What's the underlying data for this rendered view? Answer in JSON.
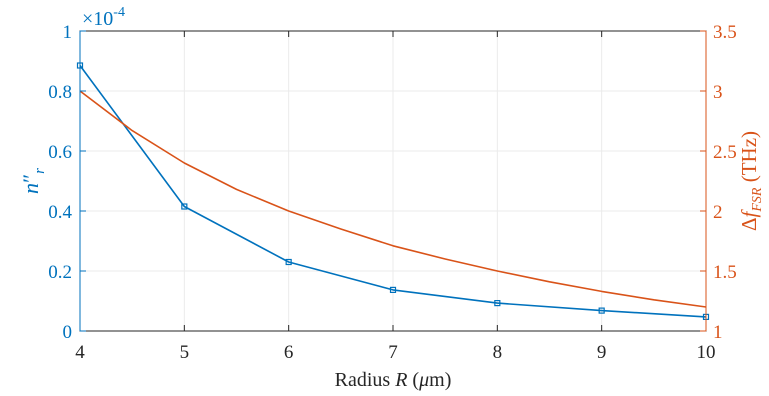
{
  "chart_data": {
    "type": "line",
    "title": "",
    "xlabel": "Radius R (μm)",
    "ylabel_left": "n″r",
    "ylabel_right": "ΔfFSR (THz)",
    "left_axis_multiplier": "×10-4",
    "xlim": [
      4,
      10
    ],
    "ylim_left": [
      0,
      1
    ],
    "ylim_right": [
      1,
      3.5
    ],
    "x_ticks": [
      "4",
      "5",
      "6",
      "7",
      "8",
      "9",
      "10"
    ],
    "y_left_ticks": [
      "0",
      "0.2",
      "0.4",
      "0.6",
      "0.8",
      "1"
    ],
    "y_right_ticks": [
      "1",
      "1.5",
      "2",
      "2.5",
      "3",
      "3.5"
    ],
    "grid": true,
    "series": [
      {
        "axis": "left",
        "color": "#0072BD",
        "marker": "square",
        "x": [
          4,
          5,
          6,
          7,
          8,
          9,
          10
        ],
        "values": [
          0.885,
          0.415,
          0.23,
          0.137,
          0.093,
          0.068,
          0.047
        ]
      },
      {
        "axis": "right",
        "color": "#D95319",
        "marker": "none",
        "x": [
          4,
          4.5,
          5,
          5.5,
          6,
          6.5,
          7,
          7.5,
          8,
          8.5,
          9,
          9.5,
          10
        ],
        "values": [
          3.0,
          2.67,
          2.4,
          2.18,
          2.0,
          1.85,
          1.71,
          1.6,
          1.5,
          1.41,
          1.33,
          1.26,
          1.2
        ]
      }
    ]
  }
}
